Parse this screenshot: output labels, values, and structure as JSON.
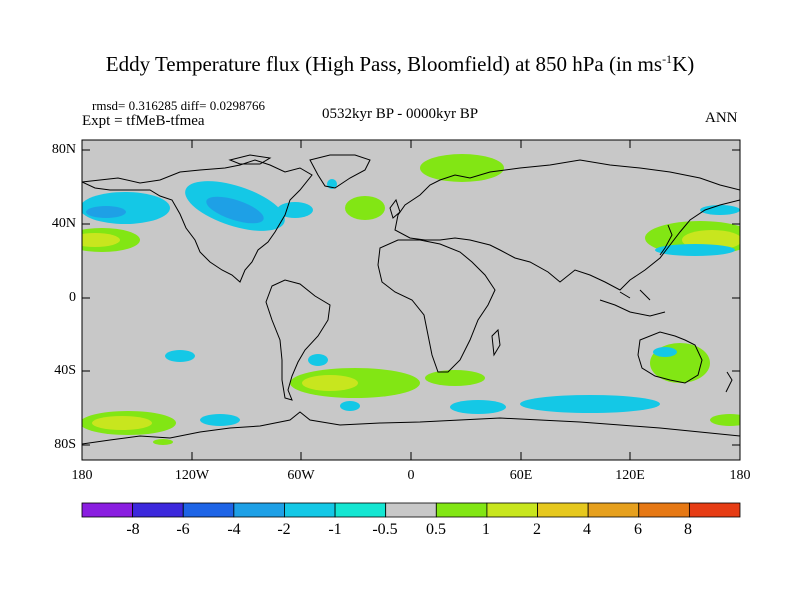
{
  "title": "Eddy Temperature flux (High Pass, Bloomfield) at 850 hPa (in ms",
  "title_sup": "-1",
  "title_end": "K)",
  "stats": "rmsd= 0.316285 diff= 0.0298766",
  "expt": "Expt = tfMeB-tfmea",
  "period": "0532kyr BP - 0000kyr BP",
  "season": "ANN",
  "lat_labels": [
    "80N",
    "40N",
    "0",
    "40S",
    "80S"
  ],
  "lon_labels": [
    "180",
    "120W",
    "60W",
    "0",
    "60E",
    "120E",
    "180"
  ],
  "colorbar": {
    "labels": [
      "-8",
      "-6",
      "-4",
      "-2",
      "-1",
      "-0.5",
      "0.5",
      "1",
      "2",
      "4",
      "6",
      "8"
    ],
    "colors": [
      "#8a1ee0",
      "#3c28dc",
      "#1e64e6",
      "#1ea0e6",
      "#14c8e6",
      "#14e6d2",
      "#c8c8c8",
      "#82e614",
      "#c8e61e",
      "#e6c81e",
      "#e6a01e",
      "#e67814",
      "#e63c14"
    ]
  },
  "colors": {
    "background": "#c8c8c8",
    "land_outline": "#000000"
  }
}
